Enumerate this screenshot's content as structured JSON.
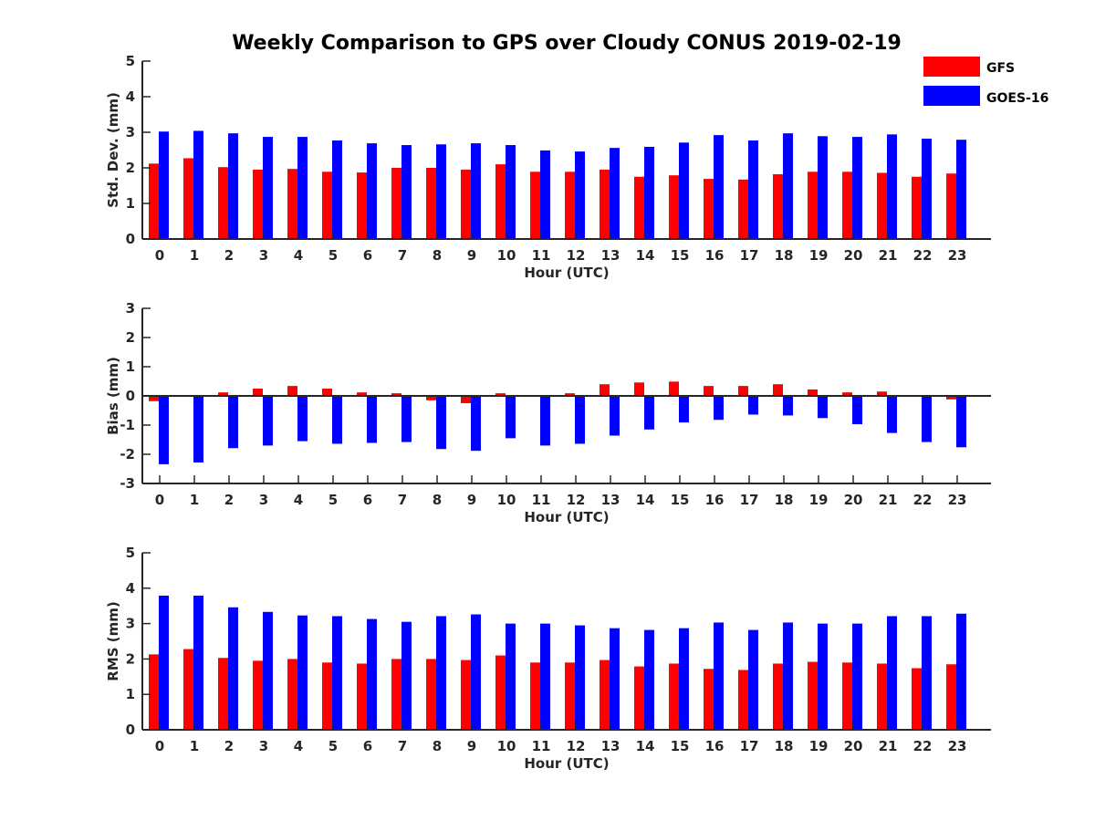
{
  "title": "Weekly Comparison to GPS over Cloudy CONUS 2019-02-19",
  "legend": {
    "placement": "top-right",
    "items": [
      {
        "label": "GFS",
        "color": "#ff0000"
      },
      {
        "label": "GOES-16",
        "color": "#0000ff"
      }
    ]
  },
  "chart_data": [
    {
      "type": "bar",
      "xlabel": "Hour (UTC)",
      "ylabel": "Std. Dev. (mm)",
      "ylim": [
        0,
        5
      ],
      "yticks": [
        0,
        1,
        2,
        3,
        4,
        5
      ],
      "categories": [
        "0",
        "1",
        "2",
        "3",
        "4",
        "5",
        "6",
        "7",
        "8",
        "9",
        "10",
        "11",
        "12",
        "13",
        "14",
        "15",
        "16",
        "17",
        "18",
        "19",
        "20",
        "21",
        "22",
        "23"
      ],
      "series": [
        {
          "name": "GFS",
          "color": "#ff0000",
          "values": [
            2.12,
            2.27,
            2.02,
            1.95,
            1.97,
            1.89,
            1.87,
            2.0,
            2.0,
            1.95,
            2.1,
            1.89,
            1.89,
            1.95,
            1.75,
            1.79,
            1.69,
            1.67,
            1.82,
            1.89,
            1.89,
            1.86,
            1.75,
            1.84
          ]
        },
        {
          "name": "GOES-16",
          "color": "#0000ff",
          "values": [
            3.02,
            3.04,
            2.97,
            2.87,
            2.87,
            2.77,
            2.69,
            2.64,
            2.66,
            2.69,
            2.64,
            2.49,
            2.46,
            2.56,
            2.59,
            2.71,
            2.92,
            2.77,
            2.97,
            2.89,
            2.87,
            2.94,
            2.82,
            2.79
          ]
        }
      ]
    },
    {
      "type": "bar",
      "xlabel": "Hour (UTC)",
      "ylabel": "Bias (mm)",
      "ylim": [
        -3,
        3
      ],
      "yticks": [
        -3,
        -2,
        -1,
        0,
        1,
        2,
        3
      ],
      "categories": [
        "0",
        "1",
        "2",
        "3",
        "4",
        "5",
        "6",
        "7",
        "8",
        "9",
        "10",
        "11",
        "12",
        "13",
        "14",
        "15",
        "16",
        "17",
        "18",
        "19",
        "20",
        "21",
        "22",
        "23"
      ],
      "series": [
        {
          "name": "GFS",
          "color": "#ff0000",
          "values": [
            -0.18,
            -0.03,
            0.12,
            0.25,
            0.34,
            0.25,
            0.12,
            0.09,
            -0.15,
            -0.25,
            0.09,
            -0.03,
            0.09,
            0.4,
            0.46,
            0.49,
            0.34,
            0.34,
            0.4,
            0.22,
            0.12,
            0.15,
            0.03,
            -0.12
          ]
        },
        {
          "name": "GOES-16",
          "color": "#0000ff",
          "values": [
            -2.34,
            -2.28,
            -1.79,
            -1.7,
            -1.55,
            -1.64,
            -1.61,
            -1.58,
            -1.82,
            -1.88,
            -1.45,
            -1.7,
            -1.64,
            -1.36,
            -1.15,
            -0.91,
            -0.82,
            -0.64,
            -0.67,
            -0.76,
            -0.97,
            -1.27,
            -1.58,
            -1.76
          ]
        }
      ]
    },
    {
      "type": "bar",
      "xlabel": "Hour (UTC)",
      "ylabel": "RMS (mm)",
      "ylim": [
        0,
        5
      ],
      "yticks": [
        0,
        1,
        2,
        3,
        4,
        5
      ],
      "categories": [
        "0",
        "1",
        "2",
        "3",
        "4",
        "5",
        "6",
        "7",
        "8",
        "9",
        "10",
        "11",
        "12",
        "13",
        "14",
        "15",
        "16",
        "17",
        "18",
        "19",
        "20",
        "21",
        "22",
        "23"
      ],
      "series": [
        {
          "name": "GFS",
          "color": "#ff0000",
          "values": [
            2.13,
            2.28,
            2.03,
            1.95,
            2.0,
            1.9,
            1.87,
            2.0,
            2.0,
            1.97,
            2.1,
            1.9,
            1.9,
            1.97,
            1.79,
            1.87,
            1.72,
            1.69,
            1.87,
            1.92,
            1.9,
            1.87,
            1.74,
            1.85
          ]
        },
        {
          "name": "GOES-16",
          "color": "#0000ff",
          "values": [
            3.79,
            3.79,
            3.46,
            3.33,
            3.23,
            3.21,
            3.13,
            3.05,
            3.21,
            3.26,
            3.0,
            3.0,
            2.95,
            2.87,
            2.82,
            2.87,
            3.03,
            2.82,
            3.03,
            3.0,
            3.0,
            3.21,
            3.21,
            3.28
          ]
        }
      ]
    }
  ]
}
